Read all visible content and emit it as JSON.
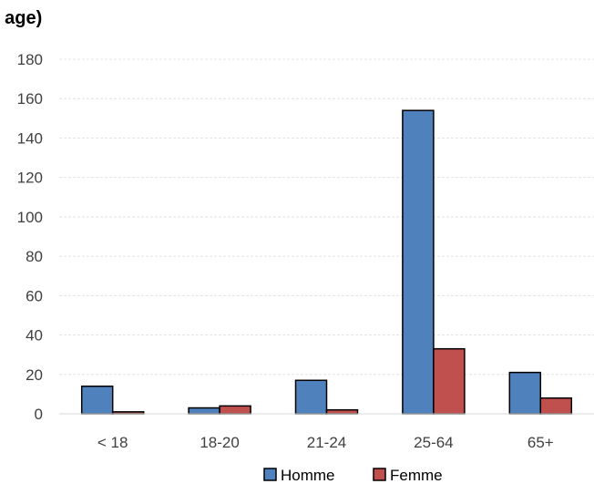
{
  "chart_data": {
    "type": "bar",
    "title": "ı age)",
    "categories": [
      "< 18",
      "18-20",
      "21-24",
      "25-64",
      "65+"
    ],
    "series": [
      {
        "name": "Homme",
        "values": [
          14,
          3,
          17,
          154,
          21
        ],
        "color": "#4f81bd"
      },
      {
        "name": "Femme",
        "values": [
          1,
          4,
          2,
          33,
          8
        ],
        "color": "#c0504d"
      }
    ],
    "ylim": [
      0,
      180
    ],
    "yticks": [
      0,
      20,
      40,
      60,
      80,
      100,
      120,
      140,
      160,
      180
    ],
    "grid": true,
    "legend_position": "bottom",
    "xlabel": "",
    "ylabel": ""
  }
}
